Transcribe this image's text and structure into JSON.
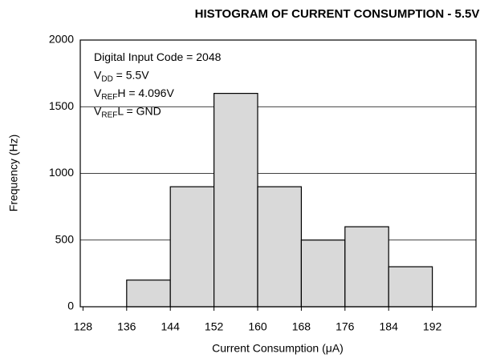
{
  "chart_data": {
    "type": "histogram",
    "title": "HISTOGRAM OF CURRENT CONSUMPTION - 5.5V",
    "xlabel": "Current Consumption (μA)",
    "ylabel": "Frequency (Hz)",
    "bins": [
      128,
      136,
      144,
      152,
      160,
      168,
      176,
      184,
      192,
      200
    ],
    "values": [
      0,
      200,
      900,
      1600,
      900,
      500,
      600,
      300,
      0
    ],
    "color": "#d9d9d9",
    "xlim": [
      127.5,
      200
    ],
    "xticks": [
      128,
      136,
      144,
      152,
      160,
      168,
      176,
      184,
      192
    ],
    "ylim": [
      0,
      2000
    ],
    "yticks": [
      0,
      500,
      1000,
      1500,
      2000
    ],
    "grid": true,
    "annotations": [
      [
        "Digital Input Code = 2048"
      ],
      [
        "V",
        "DD",
        " = 5.5V"
      ],
      [
        "V",
        "REF",
        "H = 4.096V"
      ],
      [
        "V",
        "REF",
        "L = GND"
      ]
    ]
  }
}
